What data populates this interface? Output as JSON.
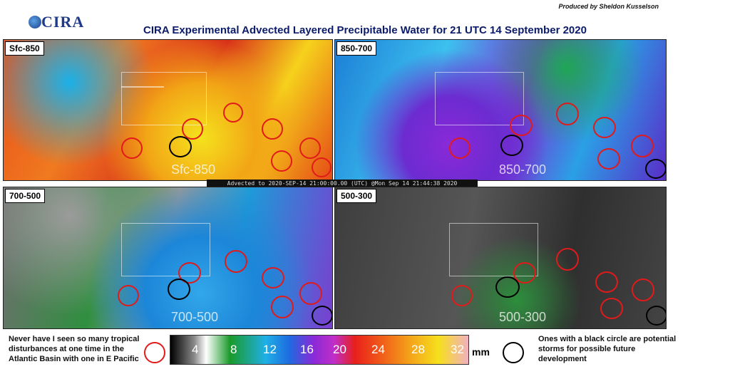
{
  "header": {
    "credit": "Produced by Sheldon Kusselson",
    "logo_text": "CIRA",
    "title": "CIRA Experimental Advected Layered Precipitable Water for 21 UTC 14 September 2020"
  },
  "panels": [
    {
      "label": "Sfc-850",
      "watermark": "Sfc-850"
    },
    {
      "label": "850-700",
      "watermark": "850-700"
    },
    {
      "label": "700-500",
      "watermark": "700-500"
    },
    {
      "label": "500-300",
      "watermark": "500-300"
    }
  ],
  "advected_banner": "Advected to 2020-SEP-14 21:00:00.00 (UTC) @Mon Sep 14 21:44:38 2020",
  "notes": {
    "left": "Never have I seen so many tropical disturbances at one time in the Atlantic Basin with one in E Pacific",
    "right": "Ones with a black circle are potential storms for possible future development"
  },
  "colorbar": {
    "ticks": [
      "4",
      "8",
      "12",
      "16",
      "20",
      "24",
      "28",
      "32"
    ],
    "unit": "mm"
  },
  "colors": {
    "title": "#0b1b6b",
    "red_circle": "#e11a1a",
    "black_circle": "#000000"
  }
}
